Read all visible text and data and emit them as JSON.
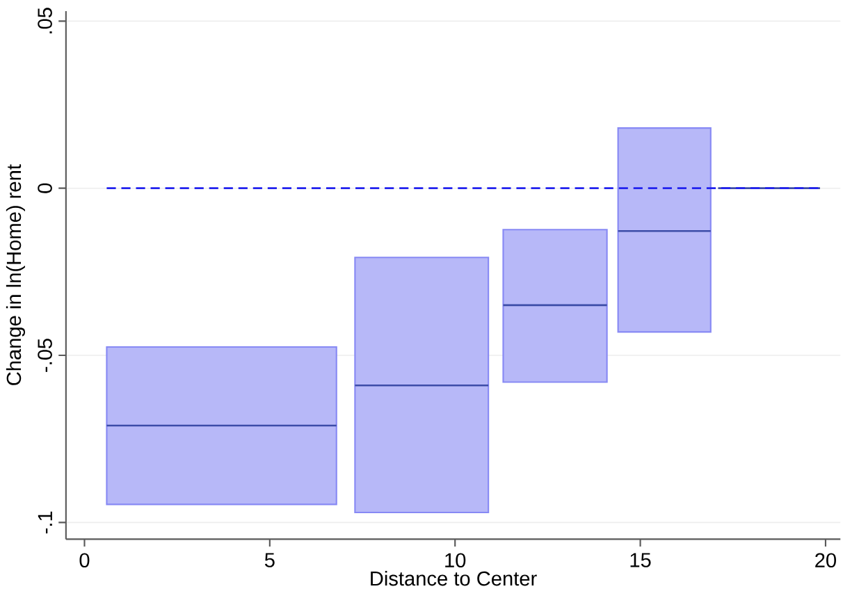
{
  "chart_data": {
    "type": "line",
    "xlabel": "Distance to Center",
    "ylabel": "Change in ln(Home) rent",
    "xlim": [
      -0.5,
      20.4
    ],
    "ylim": [
      -0.105,
      0.053
    ],
    "xticks": [
      0,
      5,
      10,
      15,
      20
    ],
    "yticks": [
      {
        "value": -0.1,
        "label": "-.1"
      },
      {
        "value": -0.05,
        "label": "-.05"
      },
      0,
      {
        "value": 0.05,
        "label": ".05"
      }
    ],
    "grid": "y",
    "marker": "none",
    "series": [
      {
        "line_style": "dashed",
        "color": "#2222ee",
        "x": [
          0.6,
          19.8
        ],
        "values": [
          0,
          0
        ]
      },
      {
        "color": "#3c4ca8",
        "x": [
          0.6,
          6.8
        ],
        "values": [
          -0.071,
          -0.071
        ],
        "lower": [
          -0.0946,
          -0.0946
        ],
        "upper": [
          -0.0475,
          -0.0475
        ]
      },
      {
        "color": "#3c4ca8",
        "x": [
          7.3,
          10.9
        ],
        "values": [
          -0.059,
          -0.059
        ],
        "lower": [
          -0.097,
          -0.097
        ],
        "upper": [
          -0.0207,
          -0.0207
        ]
      },
      {
        "color": "#3c4ca8",
        "x": [
          11.3,
          14.1
        ],
        "values": [
          -0.035,
          -0.035
        ],
        "lower": [
          -0.058,
          -0.058
        ],
        "upper": [
          -0.0124,
          -0.0124
        ]
      },
      {
        "color": "#3c4ca8",
        "x": [
          14.4,
          16.9
        ],
        "values": [
          -0.0128,
          -0.0128
        ],
        "lower": [
          -0.043,
          -0.043
        ],
        "upper": [
          0.018,
          0.018
        ]
      },
      {
        "color": "#3c4ca8",
        "x": [
          17.1,
          19.85
        ],
        "values": [
          0,
          0
        ]
      }
    ]
  }
}
